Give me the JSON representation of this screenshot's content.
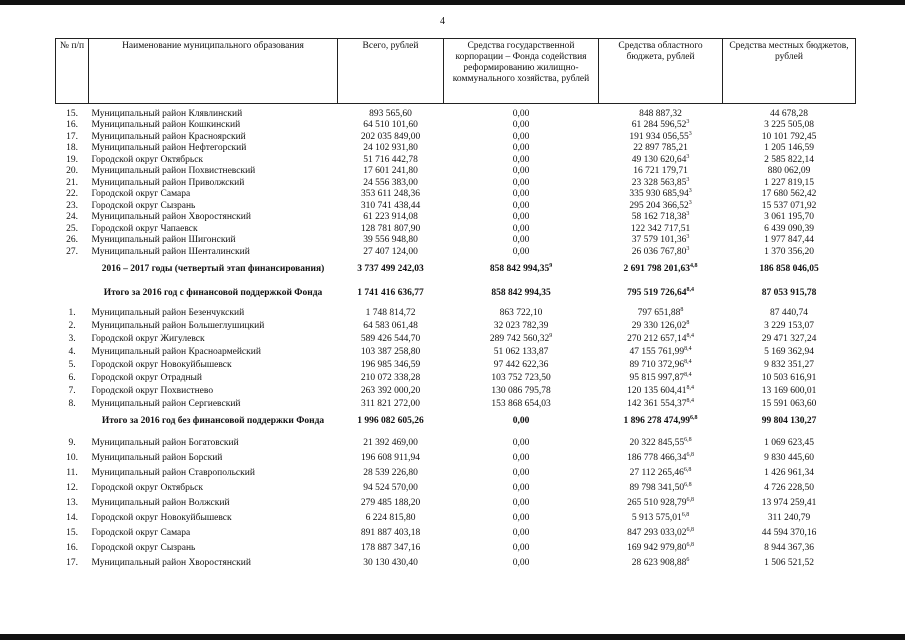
{
  "page_number": "4",
  "table": {
    "header": [
      "№ п/п",
      "Наименование муниципального образования",
      "Всего, рублей",
      "Средства государственной корпорации – Фонда содействия реформированию жилищно-коммунального хозяйства, рублей",
      "Средства областного бюджета, рублей",
      "Средства местных бюджетов, рублей"
    ],
    "rows": [
      {
        "num": "15.",
        "name": "Муниципальный район Клявлинский",
        "total": "893 565,60",
        "fund": "0,00",
        "regional": "848 887,32",
        "local": "44 678,28"
      },
      {
        "num": "16.",
        "name": "Муниципальный район Кошкинский",
        "total": "64 510 101,60",
        "fund": "0,00",
        "regional": "61 284 596,52",
        "regional_note": "3",
        "local": "3 225 505,08"
      },
      {
        "num": "17.",
        "name": "Муниципальный район Красноярский",
        "total": "202 035 849,00",
        "fund": "0,00",
        "regional": "191 934 056,55",
        "regional_note": "3",
        "local": "10 101 792,45"
      },
      {
        "num": "18.",
        "name": "Муниципальный район Нефтегорский",
        "total": "24 102 931,80",
        "fund": "0,00",
        "regional": "22 897 785,21",
        "local": "1 205 146,59"
      },
      {
        "num": "19.",
        "name": "Городской округ Октябрьск",
        "total": "51 716 442,78",
        "fund": "0,00",
        "regional": "49 130 620,64",
        "regional_note": "3",
        "local": "2 585 822,14"
      },
      {
        "num": "20.",
        "name": "Муниципальный район Похвистневский",
        "total": "17 601 241,80",
        "fund": "0,00",
        "regional": "16 721 179,71",
        "local": "880 062,09"
      },
      {
        "num": "21.",
        "name": "Муниципальный район Приволжский",
        "total": "24 556 383,00",
        "fund": "0,00",
        "regional": "23 328 563,85",
        "regional_note": "3",
        "local": "1 227 819,15"
      },
      {
        "num": "22.",
        "name": "Городской округ Самара",
        "total": "353 611 248,36",
        "fund": "0,00",
        "regional": "335 930 685,94",
        "regional_note": "3",
        "local": "17 680 562,42"
      },
      {
        "num": "23.",
        "name": "Городской округ Сызрань",
        "total": "310 741 438,44",
        "fund": "0,00",
        "regional": "295 204 366,52",
        "regional_note": "3",
        "local": "15 537 071,92"
      },
      {
        "num": "24.",
        "name": "Муниципальный район Хворостянский",
        "total": "61 223 914,08",
        "fund": "0,00",
        "regional": "58 162 718,38",
        "regional_note": "3",
        "local": "3 061 195,70"
      },
      {
        "num": "25.",
        "name": "Городской округ Чапаевск",
        "total": "128 781 807,90",
        "fund": "0,00",
        "regional": "122 342 717,51",
        "local": "6 439 090,39"
      },
      {
        "num": "26.",
        "name": "Муниципальный район Шигонский",
        "total": "39 556 948,80",
        "fund": "0,00",
        "regional": "37 579 101,36",
        "regional_note": "3",
        "local": "1 977 847,44"
      },
      {
        "num": "27.",
        "name": "Муниципальный район Шенталинский",
        "total": "27 407 124,00",
        "fund": "0,00",
        "regional": "26 036 767,80",
        "regional_note": "3",
        "local": "1 370 356,20"
      },
      {
        "name": "2016 – 2017 годы (четвертый этап финансирования)",
        "bold": true,
        "total": "3 737 499 242,03",
        "fund": "858 842 994,35",
        "fund_note": "9",
        "regional": "2 691 798 201,63",
        "regional_note": "4,8",
        "local": "186 858 046,05"
      },
      {
        "name": "Итого за 2016 год с финансовой поддержкой Фонда",
        "bold": true,
        "total": "1 741 416 636,77",
        "fund": "858 842 994,35",
        "regional": "795 519 726,64",
        "regional_note": "8,4",
        "local": "87 053 915,78"
      },
      {
        "num": "1.",
        "name": "Муниципальный район Безенчукский",
        "total": "1 748 814,72",
        "fund": "863 722,10",
        "regional": "797 651,88",
        "regional_note": "8",
        "local": "87 440,74"
      },
      {
        "num": "2.",
        "name": "Муниципальный район Большеглушицкий",
        "total": "64 583 061,48",
        "fund": "32 023 782,39",
        "regional": "29 330 126,02",
        "regional_note": "8",
        "local": "3 229 153,07"
      },
      {
        "num": "3.",
        "name": "Городской округ Жигулевск",
        "total": "589 426 544,70",
        "fund": "289 742 560,32",
        "fund_note": "9",
        "regional": "270 212 657,14",
        "regional_note": "8,4",
        "local": "29 471 327,24"
      },
      {
        "num": "4.",
        "name": "Муниципальный район Красноармейский",
        "total": "103 387 258,80",
        "fund": "51 062 133,87",
        "regional": "47 155 761,99",
        "regional_note": "8,4",
        "local": "5 169 362,94"
      },
      {
        "num": "5.",
        "name": "Городской округ Новокуйбышевск",
        "total": "196 985 346,59",
        "fund": "97 442 622,36",
        "regional": "89 710 372,96",
        "regional_note": "8,4",
        "local": "9 832 351,27"
      },
      {
        "num": "6.",
        "name": "Городской округ Отрадный",
        "total": "210 072 338,28",
        "fund": "103 752 723,50",
        "regional": "95 815 997,87",
        "regional_note": "8,4",
        "local": "10 503 616,91"
      },
      {
        "num": "7.",
        "name": "Городской округ Похвистнево",
        "total": "263 392 000,20",
        "fund": "130 086 795,78",
        "regional": "120 135 604,41",
        "regional_note": "8,4",
        "local": "13 169 600,01"
      },
      {
        "num": "8.",
        "name": "Муниципальный район Сергиевский",
        "total": "311 821 272,00",
        "fund": "153 868 654,03",
        "regional": "142 361 554,37",
        "regional_note": "8,4",
        "local": "15 591 063,60"
      },
      {
        "name": "Итого за 2016 год без финансовой поддержки Фонда",
        "bold": true,
        "total": "1 996 082 605,26",
        "fund": "0,00",
        "regional": "1 896 278 474,99",
        "regional_note": "6,8",
        "local": "99 804 130,27"
      },
      {
        "num": "9.",
        "name": "Муниципальный район Богатовский",
        "total": "21 392 469,00",
        "fund": "0,00",
        "regional": "20 322 845,55",
        "regional_note": "6,8",
        "local": "1 069 623,45"
      },
      {
        "num": "10.",
        "name": "Муниципальный район Борский",
        "total": "196 608 911,94",
        "fund": "0,00",
        "regional": "186 778 466,34",
        "regional_note": "6,8",
        "local": "9 830 445,60"
      },
      {
        "num": "11.",
        "name": "Муниципальный район Ставропольский",
        "total": "28 539 226,80",
        "fund": "0,00",
        "regional": "27 112 265,46",
        "regional_note": "6,8",
        "local": "1 426 961,34"
      },
      {
        "num": "12.",
        "name": "Городской округ Октябрьск",
        "total": "94 524 570,00",
        "fund": "0,00",
        "regional": "89 798 341,50",
        "regional_note": "6,8",
        "local": "4 726 228,50"
      },
      {
        "num": "13.",
        "name": "Муниципальный район Волжский",
        "total": "279 485 188,20",
        "fund": "0,00",
        "regional": "265 510 928,79",
        "regional_note": "6,8",
        "local": "13 974 259,41"
      },
      {
        "num": "14.",
        "name": "Городской округ Новокуйбышевск",
        "total": "6 224 815,80",
        "fund": "0,00",
        "regional": "5 913 575,01",
        "regional_note": "6,8",
        "local": "311 240,79"
      },
      {
        "num": "15.",
        "name": "Городской округ Самара",
        "total": "891 887 403,18",
        "fund": "0,00",
        "regional": "847 293 033,02",
        "regional_note": "6,8",
        "local": "44 594 370,16"
      },
      {
        "num": "16.",
        "name": "Городской округ Сызрань",
        "total": "178 887 347,16",
        "fund": "0,00",
        "regional": "169 942 979,80",
        "regional_note": "6,8",
        "local": "8 944 367,36"
      },
      {
        "num": "17.",
        "name": "Муниципальный район Хворостянский",
        "total": "30 130 430,40",
        "fund": "0,00",
        "regional": "28 623 908,88",
        "regional_note": "6",
        "local": "1 506 521,52"
      }
    ]
  }
}
